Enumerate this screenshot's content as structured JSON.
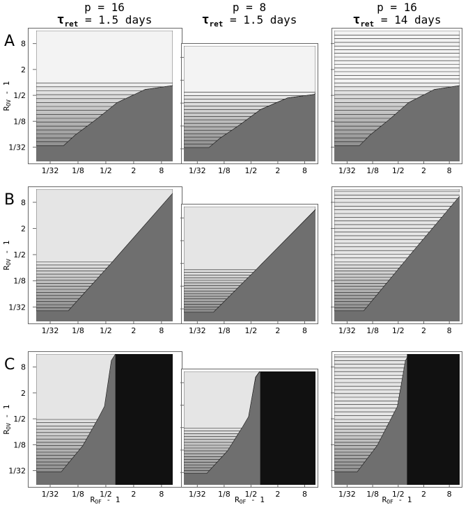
{
  "columns": [
    {
      "p": "p = 16",
      "tau": "τ",
      "tau_sub": "ret",
      "tau_rest": " = 1.5 days"
    },
    {
      "p": "p = 8",
      "tau": "τ",
      "tau_sub": "ret",
      "tau_rest": " = 1.5 days"
    },
    {
      "p": "p = 16",
      "tau": "τ",
      "tau_sub": "ret",
      "tau_rest": " = 14 days"
    }
  ],
  "rows": [
    {
      "label": "A"
    },
    {
      "label": "B"
    },
    {
      "label": "C"
    }
  ],
  "y_axis_label": {
    "base": "R",
    "sub": "OV",
    "rest": " - 1"
  },
  "x_axis_label": {
    "base": "R",
    "sub": "OF",
    "rest": " - 1"
  },
  "x_ticks": [
    {
      "value": 0.03125,
      "label": "1/32"
    },
    {
      "value": 0.125,
      "label": "1/8"
    },
    {
      "value": 0.5,
      "label": "1/2"
    },
    2,
    8
  ],
  "y_ticks": [
    8,
    2,
    {
      "value": 0.5,
      "label": "1/2"
    },
    {
      "value": 0.125,
      "label": "1/8"
    },
    {
      "value": 0.03125,
      "label": "1/32"
    }
  ],
  "axis_limits": {
    "xlim": [
      0.0156,
      14
    ],
    "ylim": [
      0.0146,
      16
    ]
  }
}
